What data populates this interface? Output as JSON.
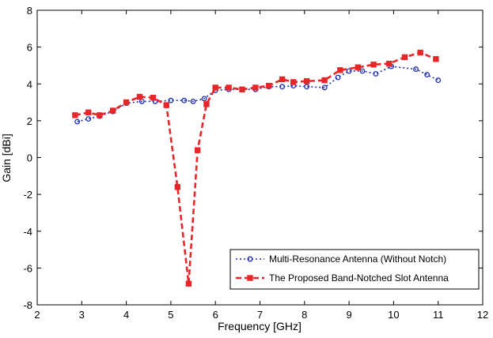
{
  "chart_data": {
    "type": "line",
    "xlabel": "Frequency [GHz]",
    "ylabel": "Gain [dBi]",
    "xlim": [
      2,
      12
    ],
    "ylim": [
      -8,
      8
    ],
    "xticks": [
      2,
      3,
      4,
      5,
      6,
      7,
      8,
      9,
      10,
      11,
      12
    ],
    "yticks": [
      -8,
      -6,
      -4,
      -2,
      0,
      2,
      4,
      6,
      8
    ],
    "grid": false,
    "legend_position": "bottom-right",
    "series": [
      {
        "name": "Multi-Resonance Antenna (Without Notch)",
        "color": "#1f2fb0",
        "line_style": "dotted",
        "marker": "circle",
        "x": [
          2.9,
          3.15,
          3.4,
          3.7,
          4.0,
          4.35,
          4.65,
          5.0,
          5.3,
          5.5,
          5.75,
          6.0,
          6.3,
          6.6,
          6.9,
          7.2,
          7.5,
          7.75,
          8.05,
          8.45,
          8.75,
          9.0,
          9.3,
          9.6,
          9.95,
          10.5,
          10.75,
          11.0
        ],
        "y": [
          1.95,
          2.1,
          2.25,
          2.5,
          2.95,
          3.05,
          3.05,
          3.1,
          3.1,
          3.05,
          3.2,
          3.65,
          3.7,
          3.7,
          3.7,
          3.85,
          3.85,
          3.9,
          3.85,
          3.8,
          4.35,
          4.7,
          4.7,
          4.55,
          4.95,
          4.8,
          4.5,
          4.2
        ]
      },
      {
        "name": "The Proposed Band-Notched Slot Antenna",
        "color": "#e8262a",
        "line_style": "dashed",
        "marker": "square",
        "x": [
          2.85,
          3.15,
          3.4,
          3.7,
          4.0,
          4.3,
          4.6,
          4.9,
          5.15,
          5.4,
          5.6,
          5.8,
          6.0,
          6.3,
          6.6,
          6.9,
          7.2,
          7.5,
          7.75,
          8.05,
          8.45,
          8.8,
          9.2,
          9.55,
          9.9,
          10.25,
          10.6,
          10.95
        ],
        "y": [
          2.3,
          2.45,
          2.3,
          2.55,
          3.0,
          3.3,
          3.25,
          2.85,
          -1.6,
          -6.85,
          0.4,
          2.9,
          3.8,
          3.8,
          3.7,
          3.8,
          3.9,
          4.25,
          4.1,
          4.15,
          4.2,
          4.75,
          4.9,
          5.05,
          5.1,
          5.45,
          5.7,
          5.35
        ]
      }
    ]
  }
}
